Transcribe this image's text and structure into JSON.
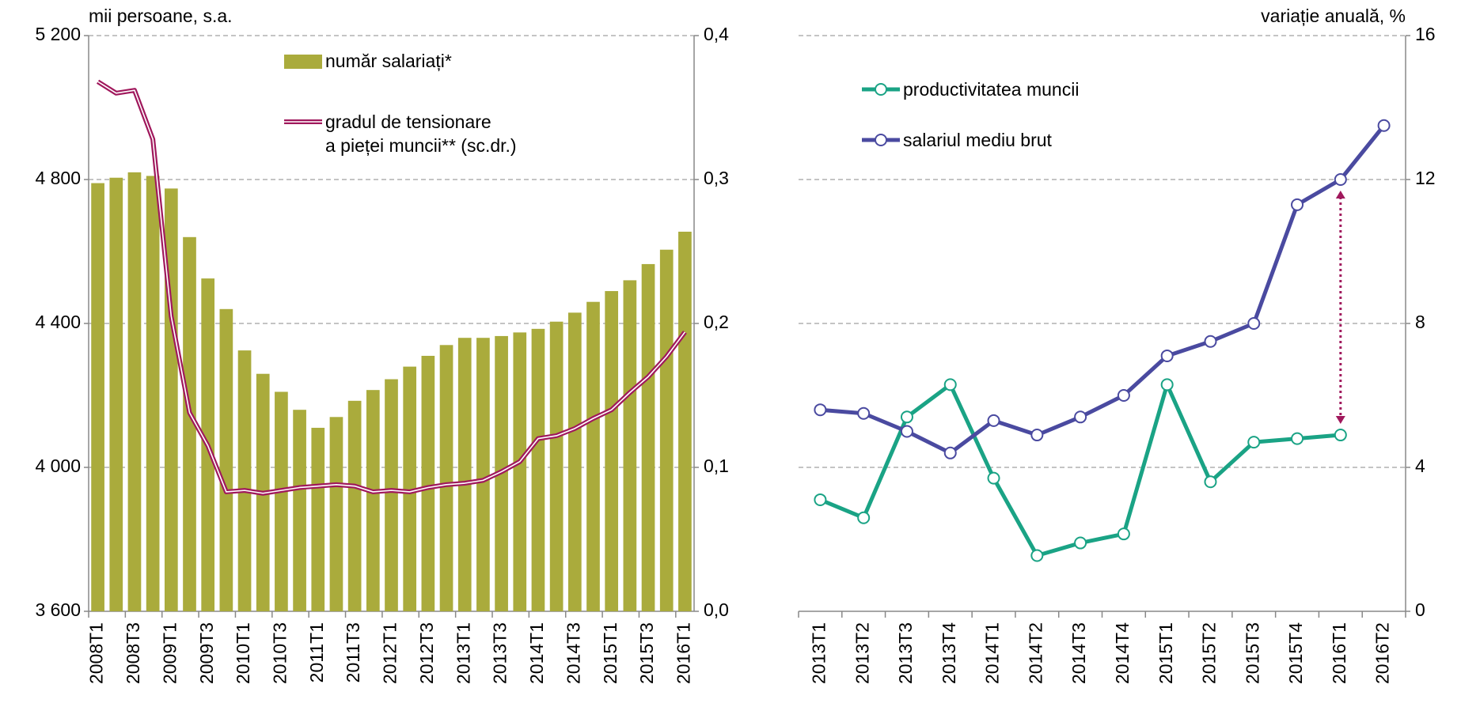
{
  "chart_data": [
    {
      "type": "combo",
      "y_label": "mii persoane, s.a.",
      "categories": [
        "2008T1",
        null,
        "2008T3",
        null,
        "2009T1",
        null,
        "2009T3",
        null,
        "2010T1",
        null,
        "2010T3",
        null,
        "2011T1",
        null,
        "2011T3",
        null,
        "2012T1",
        null,
        "2012T3",
        null,
        "2013T1",
        null,
        "2013T3",
        null,
        "2014T1",
        null,
        "2014T3",
        null,
        "2015T1",
        null,
        "2015T3",
        null,
        "2016T1"
      ],
      "series": [
        {
          "name": "număr salariați*",
          "type": "bar",
          "color": "#aaab3c",
          "axis": "y",
          "values": [
            4790,
            4805,
            4820,
            4810,
            4775,
            4640,
            4525,
            4440,
            4325,
            4260,
            4210,
            4160,
            4110,
            4140,
            4185,
            4215,
            4245,
            4280,
            4310,
            4340,
            4360,
            4360,
            4365,
            4375,
            4385,
            4405,
            4430,
            4460,
            4490,
            4520,
            4565,
            4605,
            4655
          ]
        },
        {
          "name": "gradul de tensionare\na pieței muncii** (sc.dr.)",
          "type": "line",
          "color": "#a0185c",
          "axis": "y2",
          "values": [
            0.368,
            0.36,
            0.362,
            0.328,
            0.205,
            0.138,
            0.115,
            0.083,
            0.084,
            0.082,
            0.084,
            0.086,
            0.087,
            0.088,
            0.087,
            0.083,
            0.084,
            0.083,
            0.086,
            0.088,
            0.089,
            0.091,
            0.097,
            0.104,
            0.12,
            0.122,
            0.127,
            0.134,
            0.14,
            0.152,
            0.163,
            0.177,
            0.194
          ]
        }
      ],
      "ylim": [
        3600,
        5200
      ],
      "yticks": [
        {
          "value": 3600,
          "label": "3 600"
        },
        {
          "value": 4000,
          "label": "4 000"
        },
        {
          "value": 4400,
          "label": "4 400"
        },
        {
          "value": 4800,
          "label": "4 800"
        },
        {
          "value": 5200,
          "label": "5 200"
        }
      ],
      "y2lim": [
        0,
        0.4
      ],
      "y2ticks": [
        {
          "value": 0,
          "label": "0,0"
        },
        {
          "value": 0.1,
          "label": "0,1"
        },
        {
          "value": 0.2,
          "label": "0,2"
        },
        {
          "value": 0.3,
          "label": "0,3"
        },
        {
          "value": 0.4,
          "label": "0,4"
        }
      ],
      "grid": true
    },
    {
      "type": "line",
      "y_label": "variație anuală, %",
      "categories": [
        "2013T1",
        "2013T2",
        "2013T3",
        "2013T4",
        "2014T1",
        "2014T2",
        "2014T3",
        "2014T4",
        "2015T1",
        "2015T2",
        "2015T3",
        "2015T4",
        "2016T1",
        "2016T2"
      ],
      "series": [
        {
          "name": "productivitatea muncii",
          "color": "#1aa385",
          "values": [
            3.1,
            2.6,
            5.4,
            6.3,
            3.7,
            1.55,
            1.9,
            2.15,
            6.3,
            3.6,
            4.7,
            4.8,
            4.9,
            null
          ]
        },
        {
          "name": "salariul mediu brut",
          "color": "#4a4aa0",
          "values": [
            5.6,
            5.5,
            5.0,
            4.4,
            5.3,
            4.9,
            5.4,
            6.0,
            7.1,
            7.5,
            8.0,
            11.3,
            12.0,
            13.5
          ]
        }
      ],
      "ylim": [
        0,
        16
      ],
      "yticks": [
        0,
        4,
        8,
        12,
        16
      ],
      "grid": true
    }
  ]
}
